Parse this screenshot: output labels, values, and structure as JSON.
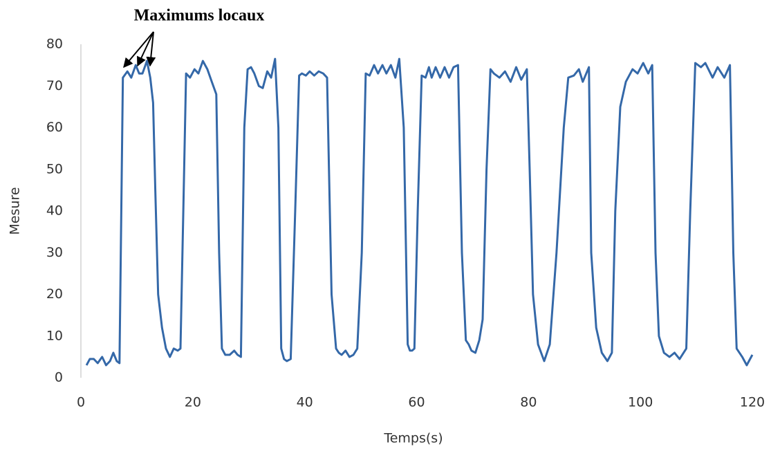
{
  "chart_data": {
    "type": "line",
    "annotation": "Maximums locaux",
    "xlabel": "Temps(s)",
    "ylabel": "Mesure",
    "xlim": [
      0,
      120
    ],
    "xticks": [
      0,
      20,
      40,
      60,
      80,
      100,
      120
    ],
    "ylim": [
      0,
      80
    ],
    "yticks": [
      0,
      10,
      20,
      30,
      40,
      50,
      60,
      70,
      80
    ],
    "grid": false,
    "x": [
      1,
      1.6,
      2.3,
      3,
      3.8,
      4.5,
      5.2,
      5.8,
      6.4,
      6.9,
      7.5,
      8.3,
      9,
      9.8,
      10.4,
      11,
      11.8,
      12.4,
      12.9,
      13.3,
      13.8,
      14.5,
      15.2,
      15.9,
      16.6,
      17.3,
      17.8,
      18.3,
      18.8,
      19.5,
      20.3,
      21,
      21.8,
      22.6,
      23.4,
      24.2,
      24.7,
      25.2,
      25.8,
      26.6,
      27.4,
      28,
      28.6,
      29.2,
      29.8,
      30.4,
      31,
      31.8,
      32.5,
      33.3,
      34,
      34.7,
      35.3,
      35.8,
      36.3,
      36.8,
      37.5,
      38.3,
      39,
      39.5,
      40.2,
      40.9,
      41.7,
      42.5,
      43.3,
      44,
      44.8,
      45.6,
      46.1,
      46.6,
      47.3,
      48,
      48.7,
      49.4,
      50.2,
      50.9,
      51.6,
      52.4,
      53.1,
      53.9,
      54.6,
      55.4,
      56.2,
      56.9,
      57.7,
      58.4,
      58.8,
      59.2,
      59.6,
      60.2,
      60.9,
      61.6,
      62.2,
      62.7,
      63.4,
      64.2,
      65,
      65.8,
      66.6,
      67.4,
      68.1,
      68.8,
      69.3,
      69.8,
      70.5,
      71.2,
      71.8,
      72.5,
      73.2,
      73.8,
      74.8,
      75.8,
      76.8,
      77.8,
      78.7,
      79.7,
      80.2,
      80.8,
      81.7,
      82.8,
      83.8,
      85,
      86.3,
      87.1,
      88.1,
      89,
      89.7,
      90.8,
      91.2,
      92.1,
      93.1,
      94.1,
      94.9,
      95.5,
      96.4,
      97.4,
      98.6,
      99.5,
      100.5,
      101.4,
      102.1,
      102.7,
      103.3,
      104.2,
      105.2,
      106.1,
      107,
      108.2,
      108.9,
      109.8,
      110.8,
      111.6,
      112.9,
      113.8,
      115,
      116,
      116.6,
      117.2,
      118.2,
      119,
      120
    ],
    "series": [
      {
        "color": "#3468a8",
        "values": [
          3,
          4.5,
          4.5,
          3.5,
          5,
          3,
          4,
          6,
          4,
          3.5,
          72,
          73.5,
          72,
          75,
          73,
          73,
          76,
          72,
          66,
          45,
          20,
          12,
          7,
          5,
          7,
          6.5,
          7,
          40,
          73,
          72,
          74,
          73,
          76,
          74,
          71,
          68,
          30,
          7,
          5.5,
          5.5,
          6.5,
          5.5,
          5,
          60,
          74,
          74.5,
          73,
          70,
          69.5,
          73.5,
          72,
          76.5,
          60,
          7,
          4.5,
          4,
          4.5,
          40,
          72.5,
          73,
          72.5,
          73.5,
          72.5,
          73.5,
          73,
          72,
          20,
          7,
          6,
          5.5,
          6.5,
          5,
          5.5,
          7,
          30,
          73,
          72.5,
          75,
          73,
          75,
          73,
          75,
          72,
          76.5,
          60,
          8,
          6.5,
          6.5,
          7,
          40,
          72.5,
          72,
          74.5,
          72,
          74.5,
          72,
          74.5,
          72,
          74.5,
          75,
          30,
          9,
          8,
          6.5,
          6,
          9,
          14,
          50,
          74,
          73,
          72,
          73.5,
          71,
          74.5,
          71.5,
          74,
          50,
          20,
          8,
          4,
          8,
          30,
          60,
          72,
          72.5,
          74,
          71,
          74.5,
          30,
          12,
          6,
          4,
          6,
          40,
          65,
          71,
          74,
          73,
          75.5,
          73,
          75,
          30,
          10,
          6,
          5,
          6,
          4.5,
          7,
          40,
          75.5,
          74.5,
          75.5,
          72,
          74.5,
          72,
          75,
          30,
          7,
          5,
          3,
          5.5
        ]
      }
    ]
  }
}
